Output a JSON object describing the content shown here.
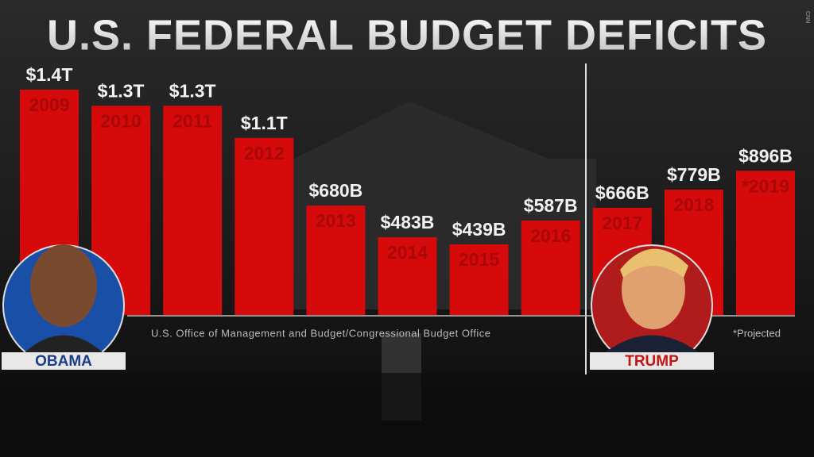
{
  "chart_data": {
    "type": "bar",
    "title": "U.S. FEDERAL BUDGET DEFICITS",
    "categories": [
      "2009",
      "2010",
      "2011",
      "2012",
      "2013",
      "2014",
      "2015",
      "2016",
      "2017",
      "2018",
      "*2019"
    ],
    "values": [
      1400,
      1300,
      1300,
      1100,
      680,
      483,
      439,
      587,
      666,
      779,
      896
    ],
    "value_labels": [
      "$1.4T",
      "$1.3T",
      "$1.3T",
      "$1.1T",
      "$680B",
      "$483B",
      "$439B",
      "$587B",
      "$666B",
      "$779B",
      "$896B"
    ],
    "color": "#d60a0a",
    "source": "U.S. Office of Management and Budget/Congressional Budget Office",
    "note": "*Projected",
    "left_name": "OBAMA",
    "right_name": "TRUMP",
    "watermark": "CNN"
  }
}
